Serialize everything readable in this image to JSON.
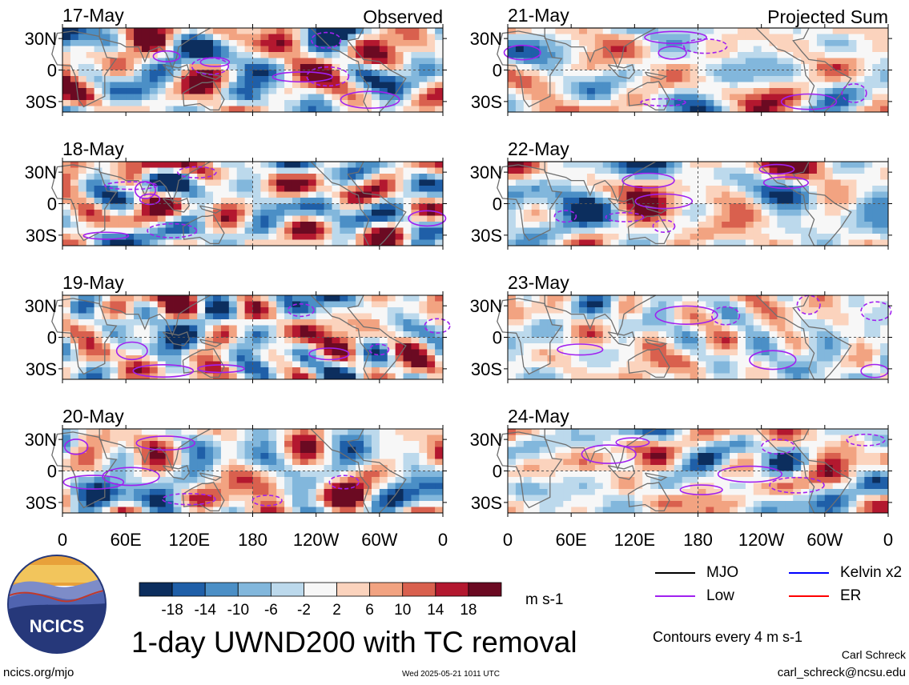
{
  "chart_data": {
    "type": "heatmap",
    "title": "1-day UWND200 with TC removal",
    "variable": "UWND200",
    "units": "m s-1",
    "columns": [
      {
        "heading": "Observed",
        "days": [
          "17-May",
          "18-May",
          "19-May",
          "20-May"
        ]
      },
      {
        "heading": "Projected Sum",
        "days": [
          "21-May",
          "22-May",
          "23-May",
          "24-May"
        ]
      }
    ],
    "lon_ticks": [
      "0",
      "60E",
      "120E",
      "180",
      "120W",
      "60W",
      "0"
    ],
    "lat_ticks": [
      "30N",
      "0",
      "30S"
    ],
    "lat_range": [
      -40,
      40
    ],
    "lon_range": [
      0,
      360
    ],
    "colorbar": {
      "ticks": [
        "-18",
        "-14",
        "-10",
        "-6",
        "-2",
        "2",
        "6",
        "10",
        "14",
        "18"
      ],
      "colors": [
        "#0c2e5e",
        "#1f5fa8",
        "#4b8fc6",
        "#82b7dc",
        "#bcd9ec",
        "#f7f7f7",
        "#fbd3bd",
        "#f2a381",
        "#d9604e",
        "#b3182f",
        "#6b0a22"
      ]
    },
    "contour_legend": [
      {
        "label": "MJO",
        "color": "#000000"
      },
      {
        "label": "Kelvin x2",
        "color": "#0000ff"
      },
      {
        "label": "Low",
        "color": "#a020f0"
      },
      {
        "label": "ER",
        "color": "#ff0000"
      }
    ],
    "contour_note": "Contours every 4 m s-1"
  },
  "branding": {
    "logo_text": "NCICS",
    "site": "ncics.org/mjo",
    "timestamp": "Wed 2025-05-21 1011 UTC",
    "author": "Carl Schreck",
    "email": "carl_schreck@ncsu.edu"
  }
}
